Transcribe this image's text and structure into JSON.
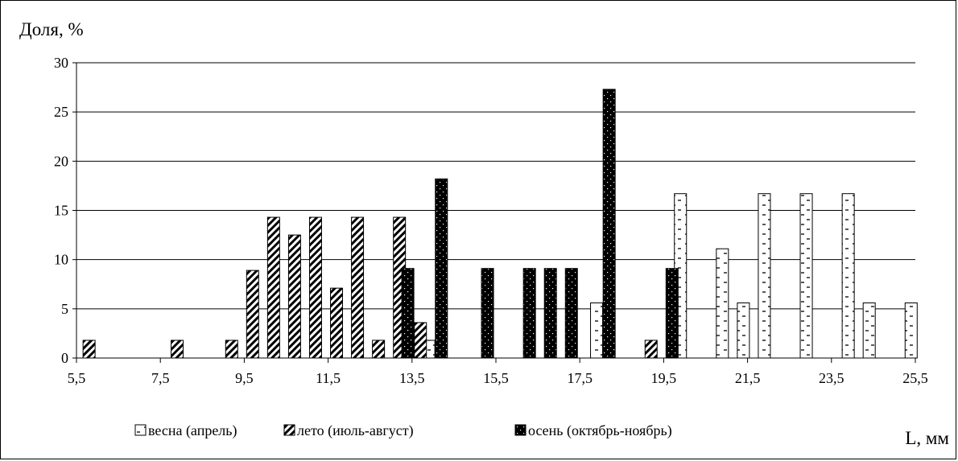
{
  "chart_data": {
    "type": "bar",
    "ylabel": "Доля, %",
    "xlabel": "L, мм",
    "ylim": [
      0,
      30
    ],
    "xlim": [
      5.5,
      25.5
    ],
    "yticks": [
      "0",
      "5",
      "10",
      "15",
      "20",
      "25",
      "30"
    ],
    "xticks": [
      "5,5",
      "7,5",
      "9,5",
      "11,5",
      "13,5",
      "15,5",
      "17,5",
      "19,5",
      "21,5",
      "23,5",
      "25,5"
    ],
    "xtick_values": [
      5.5,
      7.5,
      9.5,
      11.5,
      13.5,
      15.5,
      17.5,
      19.5,
      21.5,
      23.5,
      25.5
    ],
    "grid": true,
    "legend_position": "bottom",
    "series": [
      {
        "name": "весна (апрель)",
        "pattern": "dashes",
        "points": [
          {
            "x": 13.9,
            "y": 1.8
          },
          {
            "x": 17.9,
            "y": 5.6
          },
          {
            "x": 19.9,
            "y": 16.7
          },
          {
            "x": 20.9,
            "y": 11.1
          },
          {
            "x": 21.4,
            "y": 5.6
          },
          {
            "x": 21.9,
            "y": 16.7
          },
          {
            "x": 22.9,
            "y": 16.7
          },
          {
            "x": 23.9,
            "y": 16.7
          },
          {
            "x": 24.4,
            "y": 5.6
          },
          {
            "x": 25.4,
            "y": 5.6
          }
        ]
      },
      {
        "name": "лето (июль-август)",
        "pattern": "hatch",
        "points": [
          {
            "x": 5.8,
            "y": 1.8
          },
          {
            "x": 7.9,
            "y": 1.8
          },
          {
            "x": 9.2,
            "y": 1.8
          },
          {
            "x": 9.7,
            "y": 8.9
          },
          {
            "x": 10.2,
            "y": 14.3
          },
          {
            "x": 10.7,
            "y": 12.5
          },
          {
            "x": 11.2,
            "y": 14.3
          },
          {
            "x": 11.7,
            "y": 7.1
          },
          {
            "x": 12.2,
            "y": 14.3
          },
          {
            "x": 12.7,
            "y": 1.8
          },
          {
            "x": 13.2,
            "y": 14.3
          },
          {
            "x": 13.7,
            "y": 3.6
          },
          {
            "x": 19.2,
            "y": 1.8
          }
        ]
      },
      {
        "name": "осень (октябрь-ноябрь)",
        "pattern": "black",
        "points": [
          {
            "x": 13.4,
            "y": 9.1
          },
          {
            "x": 14.2,
            "y": 18.2
          },
          {
            "x": 15.3,
            "y": 9.1
          },
          {
            "x": 16.3,
            "y": 9.1
          },
          {
            "x": 16.8,
            "y": 9.1
          },
          {
            "x": 17.3,
            "y": 9.1
          },
          {
            "x": 18.2,
            "y": 27.3
          },
          {
            "x": 19.7,
            "y": 9.1
          }
        ]
      }
    ]
  }
}
